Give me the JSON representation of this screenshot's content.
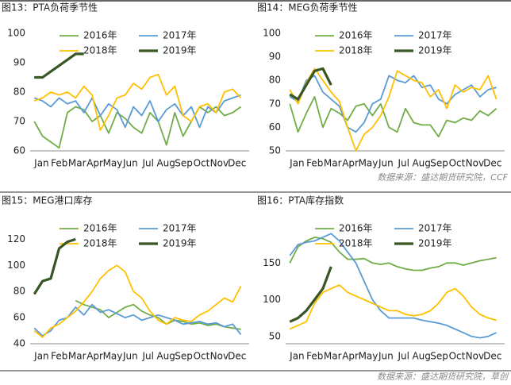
{
  "chart_data": [
    {
      "type": "line",
      "title": "图13：PTA负荷季节性",
      "x": [
        0,
        2,
        4,
        6,
        8,
        10,
        12,
        14,
        16,
        18,
        20,
        22,
        24,
        26,
        28,
        30,
        32,
        34,
        36,
        38,
        40,
        42,
        44,
        46,
        48,
        50
      ],
      "xlim": [
        -1,
        52
      ],
      "xticks": [
        {
          "value": 1,
          "label": "Jan"
        },
        {
          "value": 5.3,
          "label": "Feb"
        },
        {
          "value": 9.6,
          "label": "Mar"
        },
        {
          "value": 13.9,
          "label": "Apr"
        },
        {
          "value": 18.2,
          "label": "May"
        },
        {
          "value": 22.5,
          "label": "Jun"
        },
        {
          "value": 26.8,
          "label": "Jul"
        },
        {
          "value": 31.1,
          "label": "Aug"
        },
        {
          "value": 35.4,
          "label": "Sep"
        },
        {
          "value": 39.7,
          "label": "Oct"
        },
        {
          "value": 44,
          "label": "Nov"
        },
        {
          "value": 48.3,
          "label": "Dec"
        }
      ],
      "ylim": [
        60,
        100
      ],
      "yticks": [
        60,
        70,
        80,
        90,
        100
      ],
      "series": [
        {
          "name": "2016年",
          "color": "#70ad47",
          "values": [
            70,
            65,
            63,
            61,
            73,
            75,
            74,
            70,
            72,
            66,
            73,
            71,
            68,
            66,
            73,
            70,
            62,
            73,
            65,
            70,
            75,
            73,
            75,
            72,
            73,
            75
          ]
        },
        {
          "name": "2017年",
          "color": "#5b9bd5",
          "values": [
            78,
            77,
            75,
            78,
            76,
            77,
            73,
            78,
            72,
            76,
            74,
            68,
            75,
            72,
            77,
            70,
            74,
            76,
            72,
            75,
            68,
            75,
            73,
            77,
            78,
            79
          ]
        },
        {
          "name": "2018年",
          "color": "#ffc000",
          "values": [
            77,
            78,
            80,
            79,
            80,
            78,
            82,
            79,
            67,
            72,
            78,
            79,
            83,
            81,
            85,
            86,
            79,
            82,
            72,
            70,
            75,
            76,
            73,
            80,
            81,
            78
          ]
        },
        {
          "name": "2019年",
          "color": "#375623",
          "values": [
            85,
            85,
            87,
            89,
            91,
            93,
            93,
            null,
            null,
            null,
            null,
            null,
            null,
            null,
            null,
            null,
            null,
            null,
            null,
            null,
            null,
            null,
            null,
            null,
            null,
            null
          ]
        }
      ]
    },
    {
      "type": "line",
      "title": "图14：MEG负荷季节性",
      "source": "数据来源：盛达期货研究院，CCF",
      "x": [
        0,
        2,
        4,
        6,
        8,
        10,
        12,
        14,
        16,
        18,
        20,
        22,
        24,
        26,
        28,
        30,
        32,
        34,
        36,
        38,
        40,
        42,
        44,
        46,
        48,
        50
      ],
      "xlim": [
        -1,
        52
      ],
      "xticks": [
        {
          "value": 1,
          "label": "Jan"
        },
        {
          "value": 5.3,
          "label": "Feb"
        },
        {
          "value": 9.6,
          "label": "Mar"
        },
        {
          "value": 13.9,
          "label": "Apr"
        },
        {
          "value": 18.2,
          "label": "May"
        },
        {
          "value": 22.5,
          "label": "Jun"
        },
        {
          "value": 26.8,
          "label": "Jul"
        },
        {
          "value": 31.1,
          "label": "Aug"
        },
        {
          "value": 35.4,
          "label": "Sep"
        },
        {
          "value": 39.7,
          "label": "Oct"
        },
        {
          "value": 44,
          "label": "Nov"
        },
        {
          "value": 48.3,
          "label": "Dec"
        }
      ],
      "ylim": [
        50,
        100
      ],
      "yticks": [
        50,
        60,
        70,
        80,
        90,
        100
      ],
      "series": [
        {
          "name": "2016年",
          "color": "#70ad47",
          "values": [
            70,
            58,
            66,
            73,
            60,
            68,
            66,
            63,
            69,
            70,
            65,
            70,
            60,
            58,
            68,
            62,
            61,
            61,
            56,
            63,
            62,
            64,
            63,
            67,
            65,
            68
          ]
        },
        {
          "name": "2017年",
          "color": "#5b9bd5",
          "values": [
            73,
            71,
            80,
            82,
            75,
            72,
            69,
            60,
            58,
            62,
            70,
            72,
            82,
            80,
            79,
            82,
            77,
            78,
            72,
            70,
            74,
            76,
            78,
            73,
            76,
            77
          ]
        },
        {
          "name": "2018年",
          "color": "#ffc000",
          "values": [
            76,
            70,
            79,
            85,
            80,
            75,
            71,
            60,
            50,
            57,
            60,
            65,
            73,
            84,
            82,
            80,
            79,
            73,
            76,
            68,
            78,
            75,
            77,
            76,
            82,
            72
          ]
        },
        {
          "name": "2019年",
          "color": "#375623",
          "values": [
            74,
            72,
            78,
            84,
            85,
            78,
            null,
            null,
            null,
            null,
            null,
            null,
            null,
            null,
            null,
            null,
            null,
            null,
            null,
            null,
            null,
            null,
            null,
            null,
            null,
            null
          ]
        }
      ]
    },
    {
      "type": "line",
      "title": "图15：MEG港口库存",
      "x": [
        0,
        2,
        4,
        6,
        8,
        10,
        12,
        14,
        16,
        18,
        20,
        22,
        24,
        26,
        28,
        30,
        32,
        34,
        36,
        38,
        40,
        42,
        44,
        46,
        48,
        50
      ],
      "xlim": [
        -1,
        52
      ],
      "xticks": [
        {
          "value": 1,
          "label": "Jan"
        },
        {
          "value": 5.3,
          "label": "Feb"
        },
        {
          "value": 9.6,
          "label": "Mar"
        },
        {
          "value": 13.9,
          "label": "Apr"
        },
        {
          "value": 18.2,
          "label": "May"
        },
        {
          "value": 22.5,
          "label": "Jun"
        },
        {
          "value": 26.8,
          "label": "Jul"
        },
        {
          "value": 31.1,
          "label": "Aug"
        },
        {
          "value": 35.4,
          "label": "Sep"
        },
        {
          "value": 39.7,
          "label": "Oct"
        },
        {
          "value": 44,
          "label": "Nov"
        },
        {
          "value": 48.3,
          "label": "Dec"
        }
      ],
      "ylim": [
        40,
        130
      ],
      "yticks": [
        40,
        60,
        80,
        100,
        120
      ],
      "series": [
        {
          "name": "2016年",
          "color": "#70ad47",
          "values": [
            null,
            null,
            null,
            null,
            null,
            73,
            70,
            68,
            66,
            60,
            64,
            68,
            70,
            65,
            62,
            60,
            55,
            58,
            57,
            55,
            56,
            54,
            55,
            53,
            52,
            51
          ]
        },
        {
          "name": "2017年",
          "color": "#5b9bd5",
          "values": [
            52,
            46,
            50,
            58,
            60,
            68,
            62,
            70,
            64,
            66,
            63,
            60,
            62,
            58,
            60,
            62,
            60,
            58,
            55,
            56,
            57,
            55,
            56,
            53,
            55,
            47
          ]
        },
        {
          "name": "2018年",
          "color": "#ffc000",
          "values": [
            50,
            45,
            52,
            55,
            60,
            65,
            72,
            80,
            90,
            96,
            100,
            95,
            80,
            75,
            65,
            58,
            55,
            60,
            58,
            57,
            62,
            65,
            70,
            75,
            72,
            84
          ]
        },
        {
          "name": "2019年",
          "color": "#375623",
          "values": [
            78,
            88,
            90,
            113,
            118,
            120,
            null,
            null,
            null,
            null,
            null,
            null,
            null,
            null,
            null,
            null,
            null,
            null,
            null,
            null,
            null,
            null,
            null,
            null,
            null,
            null
          ]
        }
      ]
    },
    {
      "type": "line",
      "title": "图16：PTA库存指数",
      "source": "数据来源：盛达期货研究院，草创",
      "x": [
        0,
        2,
        4,
        6,
        8,
        10,
        12,
        14,
        16,
        18,
        20,
        22,
        24,
        26,
        28,
        30,
        32,
        34,
        36,
        38,
        40,
        42,
        44,
        46,
        48,
        50
      ],
      "xlim": [
        -1,
        52
      ],
      "xticks": [
        {
          "value": 1,
          "label": "Jan"
        },
        {
          "value": 5.3,
          "label": "Feb"
        },
        {
          "value": 9.6,
          "label": "Mar"
        },
        {
          "value": 13.9,
          "label": "Apr"
        },
        {
          "value": 18.2,
          "label": "May"
        },
        {
          "value": 22.5,
          "label": "Jun"
        },
        {
          "value": 26.8,
          "label": "Jul"
        },
        {
          "value": 31.1,
          "label": "Aug"
        },
        {
          "value": 35.4,
          "label": "Sep"
        },
        {
          "value": 39.7,
          "label": "Oct"
        },
        {
          "value": 44,
          "label": "Nov"
        },
        {
          "value": 48.3,
          "label": "Dec"
        }
      ],
      "ylim": [
        40,
        200
      ],
      "yticks": [
        50,
        100,
        150
      ],
      "series": [
        {
          "name": "2016年",
          "color": "#70ad47",
          "values": [
            150,
            172,
            180,
            185,
            183,
            178,
            165,
            155,
            155,
            156,
            150,
            148,
            150,
            145,
            142,
            140,
            140,
            143,
            145,
            150,
            150,
            147,
            150,
            153,
            155,
            157
          ]
        },
        {
          "name": "2017年",
          "color": "#5b9bd5",
          "values": [
            160,
            175,
            178,
            180,
            185,
            190,
            180,
            165,
            150,
            125,
            100,
            85,
            75,
            75,
            75,
            75,
            72,
            70,
            68,
            65,
            60,
            55,
            50,
            48,
            50,
            55
          ]
        },
        {
          "name": "2018年",
          "color": "#ffc000",
          "values": [
            60,
            65,
            70,
            95,
            110,
            115,
            120,
            110,
            105,
            100,
            95,
            90,
            85,
            85,
            80,
            78,
            80,
            85,
            95,
            110,
            115,
            105,
            90,
            80,
            75,
            72
          ]
        },
        {
          "name": "2019年",
          "color": "#375623",
          "values": [
            70,
            75,
            85,
            100,
            115,
            145,
            null,
            null,
            null,
            null,
            null,
            null,
            null,
            null,
            null,
            null,
            null,
            null,
            null,
            null,
            null,
            null,
            null,
            null,
            null,
            null
          ]
        }
      ]
    }
  ]
}
